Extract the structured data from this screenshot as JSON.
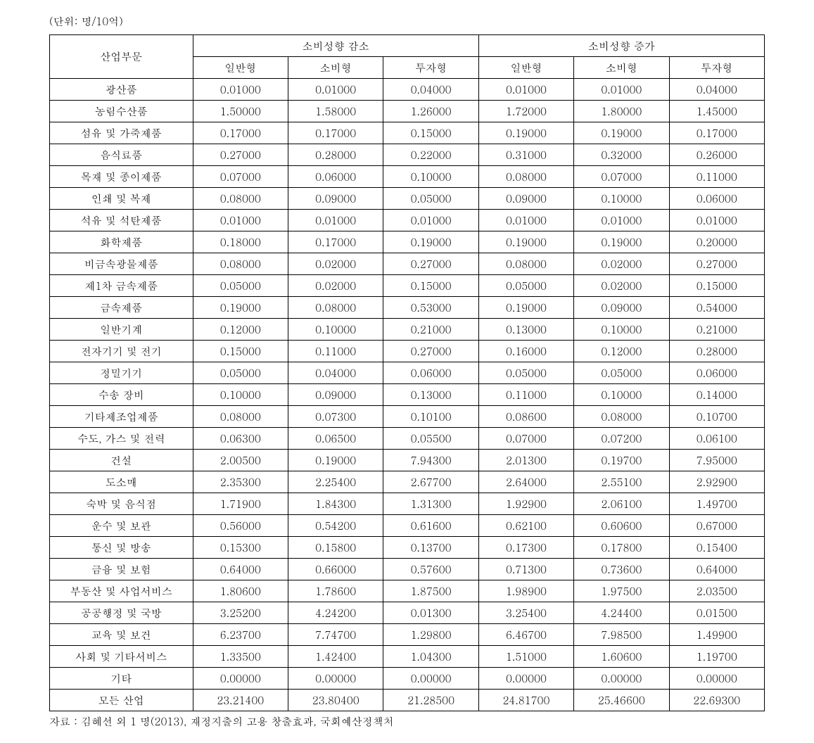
{
  "unit_label": "(단위: 명/10억)",
  "source_note": "자료 : 김혜선 외 1 명(2013), 재정지출의 고용 창출효과, 국회예산정책처",
  "table": {
    "col_sector_header": "산업부문",
    "group_decrease": "소비성향 감소",
    "group_increase": "소비성향 증가",
    "subcols": [
      "일반형",
      "소비형",
      "투자형"
    ],
    "columns": [
      {
        "key": "sector",
        "align": "center"
      },
      {
        "key": "d1",
        "align": "center"
      },
      {
        "key": "d2",
        "align": "center"
      },
      {
        "key": "d3",
        "align": "center"
      },
      {
        "key": "i1",
        "align": "center"
      },
      {
        "key": "i2",
        "align": "center"
      },
      {
        "key": "i3",
        "align": "center"
      }
    ],
    "rows": [
      {
        "sector": "광산품",
        "d1": "0.01000",
        "d2": "0.01000",
        "d3": "0.04000",
        "i1": "0.01000",
        "i2": "0.01000",
        "i3": "0.04000"
      },
      {
        "sector": "농림수산품",
        "d1": "1.50000",
        "d2": "1.58000",
        "d3": "1.26000",
        "i1": "1.72000",
        "i2": "1.80000",
        "i3": "1.45000"
      },
      {
        "sector": "섬유 및 가죽제품",
        "d1": "0.17000",
        "d2": "0.17000",
        "d3": "0.15000",
        "i1": "0.19000",
        "i2": "0.19000",
        "i3": "0.17000"
      },
      {
        "sector": "음식료품",
        "d1": "0.27000",
        "d2": "0.28000",
        "d3": "0.22000",
        "i1": "0.31000",
        "i2": "0.32000",
        "i3": "0.26000"
      },
      {
        "sector": "목재 및 종이제품",
        "d1": "0.07000",
        "d2": "0.06000",
        "d3": "0.10000",
        "i1": "0.08000",
        "i2": "0.07000",
        "i3": "0.11000"
      },
      {
        "sector": "인쇄 및 복제",
        "d1": "0.08000",
        "d2": "0.09000",
        "d3": "0.05000",
        "i1": "0.09000",
        "i2": "0.10000",
        "i3": "0.06000"
      },
      {
        "sector": "석유 및 석탄제품",
        "d1": "0.01000",
        "d2": "0.01000",
        "d3": "0.01000",
        "i1": "0.01000",
        "i2": "0.01000",
        "i3": "0.01000"
      },
      {
        "sector": "화학제품",
        "d1": "0.18000",
        "d2": "0.17000",
        "d3": "0.19000",
        "i1": "0.19000",
        "i2": "0.19000",
        "i3": "0.20000"
      },
      {
        "sector": "비금속광물제품",
        "d1": "0.08000",
        "d2": "0.02000",
        "d3": "0.27000",
        "i1": "0.08000",
        "i2": "0.02000",
        "i3": "0.27000"
      },
      {
        "sector": "제1차 금속제품",
        "d1": "0.05000",
        "d2": "0.02000",
        "d3": "0.15000",
        "i1": "0.05000",
        "i2": "0.02000",
        "i3": "0.15000"
      },
      {
        "sector": "금속제품",
        "d1": "0.19000",
        "d2": "0.08000",
        "d3": "0.53000",
        "i1": "0.19000",
        "i2": "0.09000",
        "i3": "0.54000"
      },
      {
        "sector": "일반기계",
        "d1": "0.12000",
        "d2": "0.10000",
        "d3": "0.21000",
        "i1": "0.13000",
        "i2": "0.10000",
        "i3": "0.21000"
      },
      {
        "sector": "전자기기 및 전기",
        "d1": "0.15000",
        "d2": "0.11000",
        "d3": "0.27000",
        "i1": "0.16000",
        "i2": "0.12000",
        "i3": "0.28000"
      },
      {
        "sector": "정밀기기",
        "d1": "0.05000",
        "d2": "0.04000",
        "d3": "0.06000",
        "i1": "0.05000",
        "i2": "0.05000",
        "i3": "0.06000"
      },
      {
        "sector": "수송 장비",
        "d1": "0.10000",
        "d2": "0.09000",
        "d3": "0.13000",
        "i1": "0.11000",
        "i2": "0.10000",
        "i3": "0.14000"
      },
      {
        "sector": "기타제조업제품",
        "d1": "0.08000",
        "d2": "0.07300",
        "d3": "0.10100",
        "i1": "0.08600",
        "i2": "0.08000",
        "i3": "0.10700"
      },
      {
        "sector": "수도, 가스 및 전력",
        "d1": "0.06300",
        "d2": "0.06500",
        "d3": "0.05500",
        "i1": "0.07000",
        "i2": "0.07200",
        "i3": "0.06100"
      },
      {
        "sector": "건설",
        "d1": "2.00500",
        "d2": "0.19000",
        "d3": "7.94300",
        "i1": "2.01300",
        "i2": "0.19700",
        "i3": "7.95000"
      },
      {
        "sector": "도소매",
        "d1": "2.35300",
        "d2": "2.25400",
        "d3": "2.67700",
        "i1": "2.64000",
        "i2": "2.55100",
        "i3": "2.92900"
      },
      {
        "sector": "숙박 및 음식점",
        "d1": "1.71900",
        "d2": "1.84300",
        "d3": "1.31300",
        "i1": "1.92900",
        "i2": "2.06100",
        "i3": "1.49700"
      },
      {
        "sector": "운수 및 보관",
        "d1": "0.56000",
        "d2": "0.54200",
        "d3": "0.61600",
        "i1": "0.62100",
        "i2": "0.60600",
        "i3": "0.67000"
      },
      {
        "sector": "통신 및 방송",
        "d1": "0.15300",
        "d2": "0.15800",
        "d3": "0.13700",
        "i1": "0.17300",
        "i2": "0.17800",
        "i3": "0.15400"
      },
      {
        "sector": "금융 및 보험",
        "d1": "0.64000",
        "d2": "0.66000",
        "d3": "0.57600",
        "i1": "0.71300",
        "i2": "0.73600",
        "i3": "0.64000"
      },
      {
        "sector": "부동산 및 사업서비스",
        "d1": "1.80600",
        "d2": "1.78600",
        "d3": "1.87500",
        "i1": "1.98900",
        "i2": "1.97500",
        "i3": "2.03500"
      },
      {
        "sector": "공공행정 및 국방",
        "d1": "3.25200",
        "d2": "4.24200",
        "d3": "0.01300",
        "i1": "3.25400",
        "i2": "4.24400",
        "i3": "0.01500"
      },
      {
        "sector": "교육 및 보건",
        "d1": "6.23700",
        "d2": "7.74700",
        "d3": "1.29800",
        "i1": "6.46700",
        "i2": "7.98500",
        "i3": "1.49900"
      },
      {
        "sector": "사회 및 기타서비스",
        "d1": "1.33500",
        "d2": "1.42400",
        "d3": "1.04300",
        "i1": "1.51000",
        "i2": "1.60600",
        "i3": "1.19700"
      },
      {
        "sector": "기타",
        "d1": "0.00000",
        "d2": "0.00000",
        "d3": "0.00000",
        "i1": "0.00000",
        "i2": "0.00000",
        "i3": "0.00000"
      },
      {
        "sector": "모든 산업",
        "d1": "23.21400",
        "d2": "23.80400",
        "d3": "21.28500",
        "i1": "24.81700",
        "i2": "25.46600",
        "i3": "22.69300"
      }
    ]
  },
  "style": {
    "background_color": "#ffffff",
    "text_color": "#000000",
    "border_color": "#000000",
    "font_family": "Malgun Gothic, Batang, serif",
    "font_size_pt": 11
  }
}
